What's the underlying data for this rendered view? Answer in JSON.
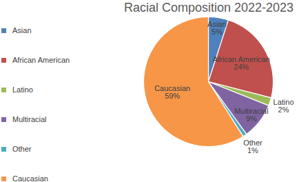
{
  "chart_data": {
    "type": "pie",
    "title": "Racial Composition 2022-2023",
    "categories": [
      "Asian",
      "African American",
      "Latino",
      "Multiracial",
      "Other",
      "Caucasian"
    ],
    "values": [
      5,
      24,
      2,
      9,
      1,
      59
    ],
    "value_labels": [
      "5%",
      "24%",
      "2%",
      "9%",
      "1%",
      "59%"
    ],
    "colors": [
      "#4f81bd",
      "#c0504d",
      "#9bbb59",
      "#8064a2",
      "#4bacc6",
      "#f79646"
    ],
    "data_labels": true,
    "legend": "left"
  }
}
